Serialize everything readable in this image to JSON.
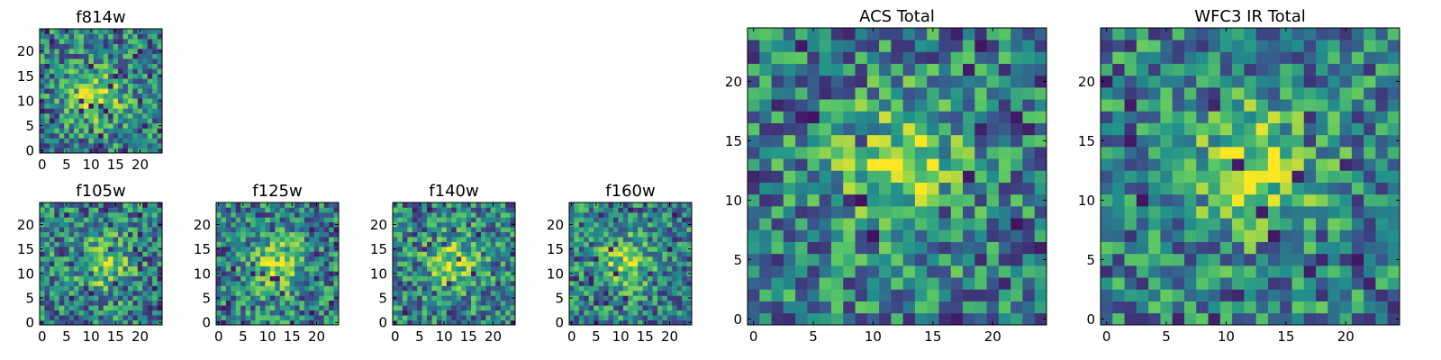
{
  "chart_data": [
    {
      "type": "heatmap",
      "title": "f814w",
      "xticks": [
        "0",
        "5",
        "10",
        "15",
        "20"
      ],
      "yticks": [
        "0",
        "5",
        "10",
        "15",
        "20"
      ],
      "xlim": [
        0,
        25
      ],
      "ylim": [
        0,
        25
      ],
      "grid_size": 25,
      "colormap": "viridis",
      "value_range": [
        0,
        1
      ],
      "bright_center": [
        11,
        11
      ],
      "seed": 11
    },
    {
      "type": "heatmap",
      "title": "f105w",
      "xticks": [
        "0",
        "5",
        "10",
        "15",
        "20"
      ],
      "yticks": [
        "0",
        "5",
        "10",
        "15",
        "20"
      ],
      "xlim": [
        0,
        25
      ],
      "ylim": [
        0,
        25
      ],
      "grid_size": 25,
      "colormap": "viridis",
      "value_range": [
        0,
        1
      ],
      "bright_center": [
        12,
        12
      ],
      "seed": 23
    },
    {
      "type": "heatmap",
      "title": "f125w",
      "xticks": [
        "0",
        "5",
        "10",
        "15",
        "20"
      ],
      "yticks": [
        "0",
        "5",
        "10",
        "15",
        "20"
      ],
      "xlim": [
        0,
        25
      ],
      "ylim": [
        0,
        25
      ],
      "grid_size": 25,
      "colormap": "viridis",
      "value_range": [
        0,
        1
      ],
      "bright_center": [
        12,
        12
      ],
      "seed": 37
    },
    {
      "type": "heatmap",
      "title": "f140w",
      "xticks": [
        "0",
        "5",
        "10",
        "15",
        "20"
      ],
      "yticks": [
        "0",
        "5",
        "10",
        "15",
        "20"
      ],
      "xlim": [
        0,
        25
      ],
      "ylim": [
        0,
        25
      ],
      "grid_size": 25,
      "colormap": "viridis",
      "value_range": [
        0,
        1
      ],
      "bright_center": [
        12,
        12
      ],
      "seed": 41
    },
    {
      "type": "heatmap",
      "title": "f160w",
      "xticks": [
        "0",
        "5",
        "10",
        "15",
        "20"
      ],
      "yticks": [
        "0",
        "5",
        "10",
        "15",
        "20"
      ],
      "xlim": [
        0,
        25
      ],
      "ylim": [
        0,
        25
      ],
      "grid_size": 25,
      "colormap": "viridis",
      "value_range": [
        0,
        1
      ],
      "bright_center": [
        11,
        12
      ],
      "seed": 53
    },
    {
      "type": "heatmap",
      "title": "ACS Total",
      "xticks": [
        "0",
        "5",
        "10",
        "15",
        "20"
      ],
      "yticks": [
        "0",
        "5",
        "10",
        "15",
        "20"
      ],
      "xlim": [
        0,
        25
      ],
      "ylim": [
        0,
        25
      ],
      "grid_size": 25,
      "colormap": "viridis",
      "value_range": [
        0,
        1
      ],
      "bright_center": [
        12,
        13
      ],
      "seed": 67
    },
    {
      "type": "heatmap",
      "title": "WFC3 IR Total",
      "xticks": [
        "0",
        "5",
        "10",
        "15",
        "20"
      ],
      "yticks": [
        "0",
        "5",
        "10",
        "15",
        "20"
      ],
      "xlim": [
        0,
        25
      ],
      "ylim": [
        0,
        25
      ],
      "grid_size": 25,
      "colormap": "viridis",
      "value_range": [
        0,
        1
      ],
      "bright_center": [
        12,
        13
      ],
      "seed": 79
    }
  ],
  "colormap_stops": [
    "#440154",
    "#3b528b",
    "#21918c",
    "#5ec962",
    "#fde725"
  ]
}
